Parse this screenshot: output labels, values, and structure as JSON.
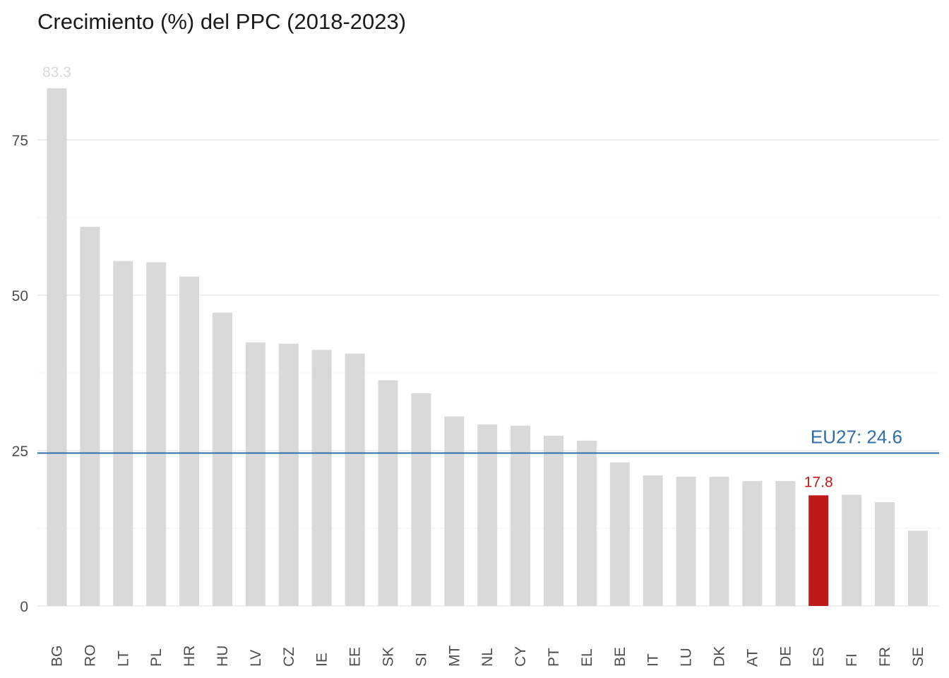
{
  "chart_data": {
    "type": "bar",
    "title": "Crecimiento (%) del PPC (2018-2023)",
    "xlabel": "",
    "ylabel": "",
    "categories": [
      "BG",
      "RO",
      "LT",
      "PL",
      "HR",
      "HU",
      "LV",
      "CZ",
      "IE",
      "EE",
      "SK",
      "SI",
      "MT",
      "NL",
      "CY",
      "PT",
      "EL",
      "BE",
      "IT",
      "LU",
      "DK",
      "AT",
      "DE",
      "ES",
      "FI",
      "FR",
      "SE"
    ],
    "values": [
      83.3,
      61.0,
      55.5,
      55.3,
      53.0,
      47.2,
      42.4,
      42.2,
      41.2,
      40.6,
      36.3,
      34.2,
      30.5,
      29.2,
      29.0,
      27.4,
      26.6,
      23.1,
      21.0,
      20.8,
      20.8,
      20.1,
      20.1,
      17.8,
      17.9,
      16.7,
      12.1
    ],
    "ylim": [
      0,
      87
    ],
    "yticks": [
      0,
      25,
      50,
      75
    ],
    "grid": true,
    "highlight": {
      "category": "ES",
      "label": "17.8"
    },
    "top_label": {
      "category": "BG",
      "label": "83.3"
    },
    "reference_line": {
      "value": 24.6,
      "label": "EU27: 24.6"
    },
    "colors": {
      "bar": "#d9d9d9",
      "highlight": "#be1a1a",
      "reference": "#2e6fa7",
      "top_label": "#d9d9d9"
    }
  }
}
